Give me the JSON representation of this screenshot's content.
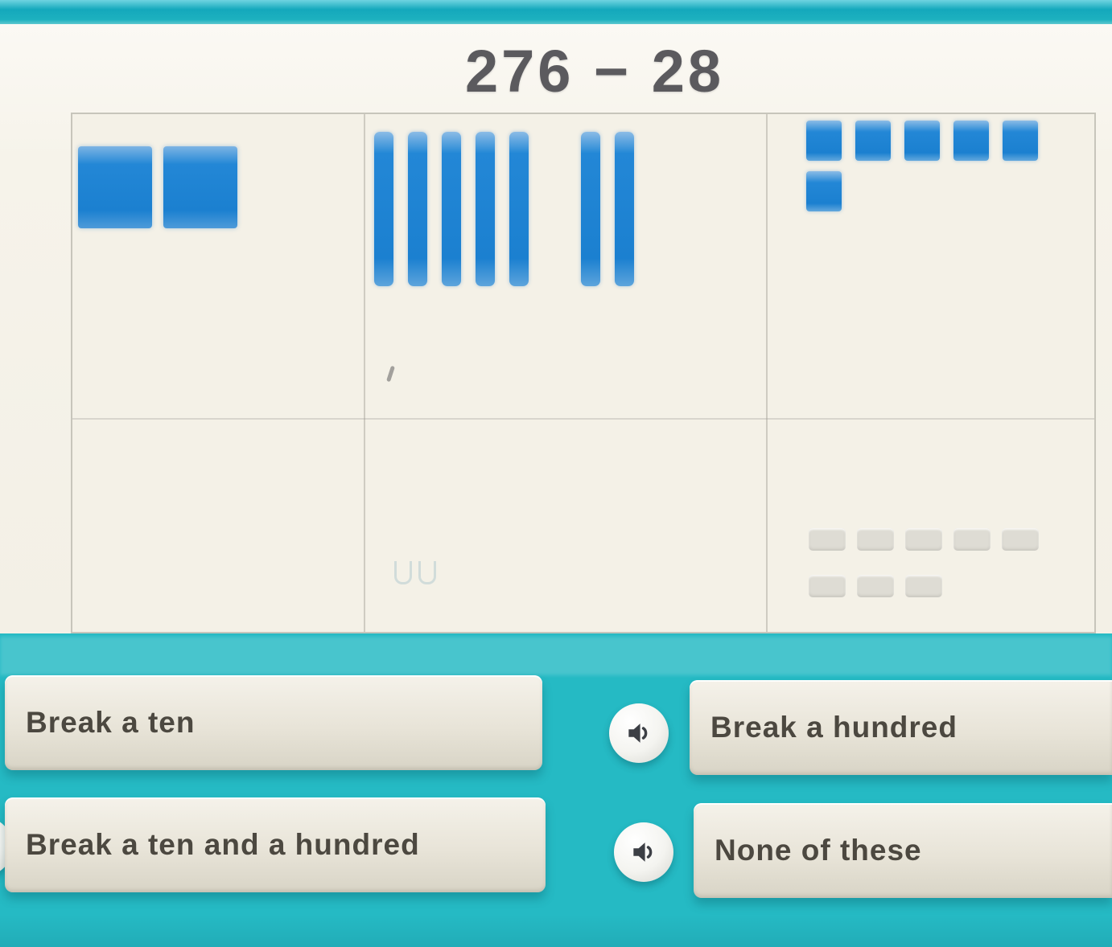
{
  "title": "276 − 28",
  "problem": {
    "minuend": "276",
    "operator": "−",
    "subtrahend": "28"
  },
  "blocks": {
    "hundreds": 2,
    "tens": 7,
    "tens_group_gap_after": 5,
    "ones": 6,
    "ghost_ones": 8
  },
  "columns": [
    {
      "name": "hundreds"
    },
    {
      "name": "tens"
    },
    {
      "name": "ones"
    }
  ],
  "answers": [
    {
      "id": "break-a-ten",
      "label": "Break a ten",
      "speaker_icon": false
    },
    {
      "id": "break-a-hundred",
      "label": "Break a hundred",
      "speaker_icon": true
    },
    {
      "id": "break-a-ten-and-a-hundred",
      "label": "Break a ten and a hundred",
      "speaker_icon": true
    },
    {
      "id": "none-of-these",
      "label": "None of these",
      "speaker_icon": true
    }
  ],
  "colors": {
    "teal_background": "#25bac4",
    "top_strip": "#14a8bc",
    "panel_cream": "#f4f1e7",
    "block_blue": "#1b80d0",
    "button_face": "#e8e4d8",
    "button_text": "#4c4840",
    "title_text": "#5b5a5e",
    "ghost_gray": "#dbd9d1"
  }
}
